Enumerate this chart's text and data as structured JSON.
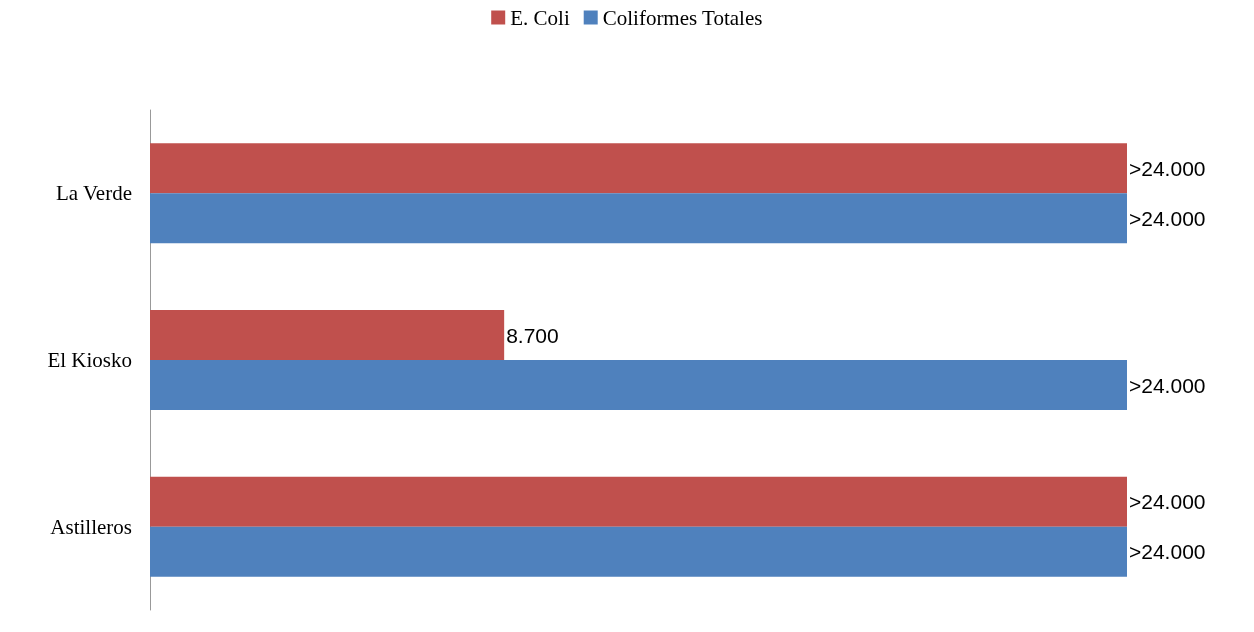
{
  "chart_data": {
    "type": "bar",
    "orientation": "horizontal",
    "categories": [
      "La Verde",
      "El Kiosko",
      "Astilleros"
    ],
    "series": [
      {
        "name": "E. Coli",
        "color": "#c0504d",
        "values": [
          24000,
          8700,
          24000
        ],
        "value_labels": [
          ">24.000",
          "8.700",
          ">24.000"
        ]
      },
      {
        "name": "Coliformes Totales",
        "color": "#4f81bd",
        "values": [
          24000,
          24000,
          24000
        ],
        "value_labels": [
          ">24.000",
          ">24.000",
          ">24.000"
        ]
      }
    ],
    "legend": "top",
    "grid": false,
    "tick_labels": "y"
  }
}
